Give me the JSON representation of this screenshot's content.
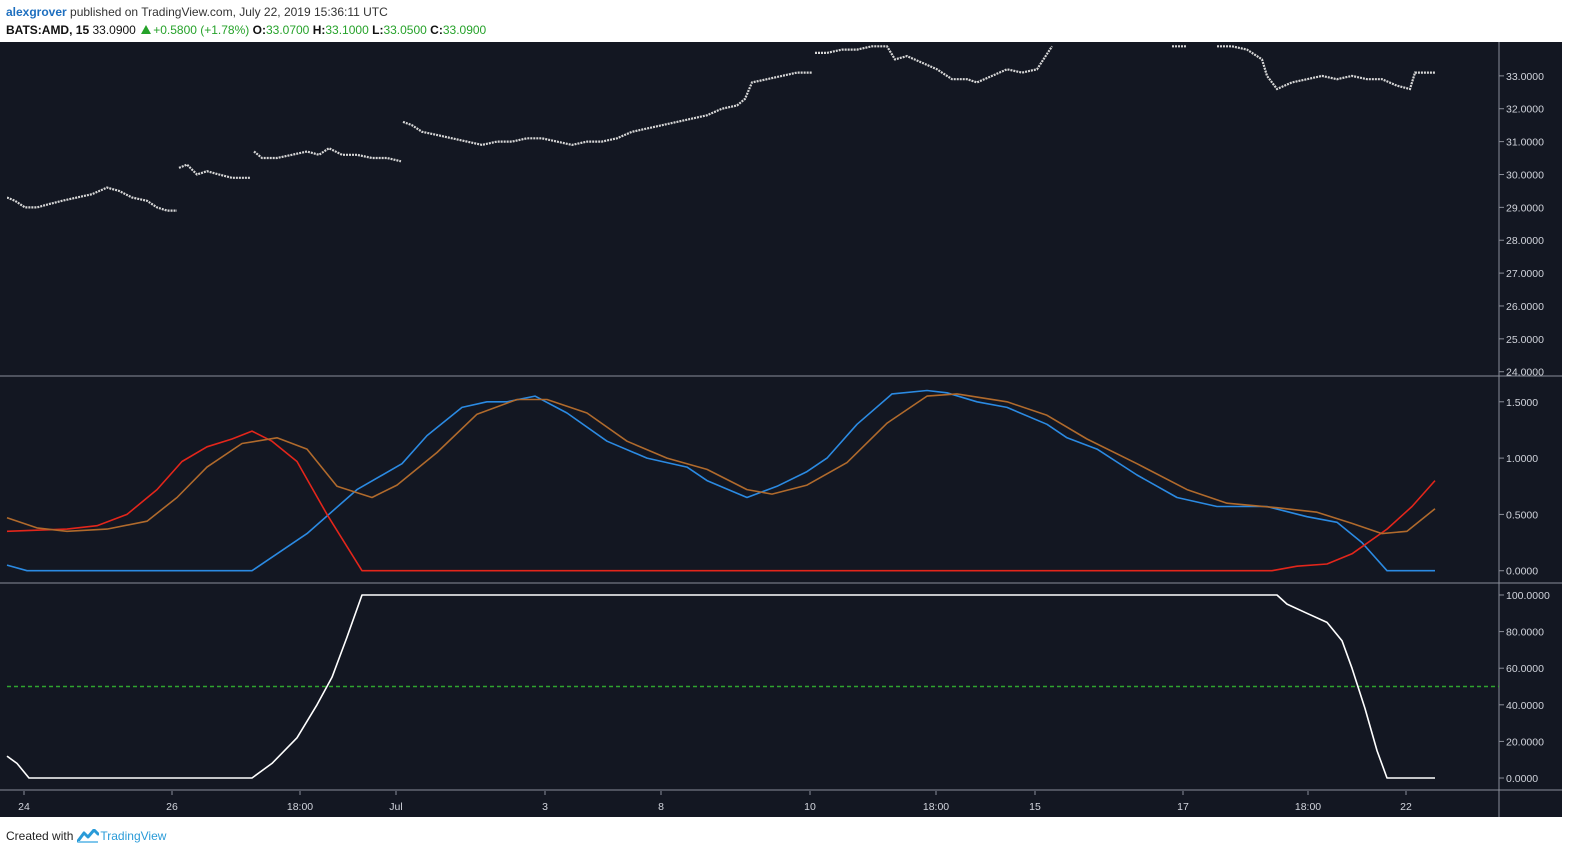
{
  "header": {
    "author": "alexgrover",
    "published_text": " published on TradingView.com, July 22, 2019 15:36:11 UTC",
    "symbol": "BATS:AMD, 15",
    "last": "33.0900",
    "change": "+0.5800 (+1.78%)",
    "open_label": "O:",
    "open_value": "33.0700",
    "high_label": "H:",
    "high_value": "33.1000",
    "low_label": "L:",
    "low_value": "33.0500",
    "close_label": "C:",
    "close_value": "33.0900"
  },
  "footer": {
    "created_with": "Created with",
    "brand": "TradingView"
  },
  "colors": {
    "background": "#131722",
    "price": "#d6d6d6",
    "blue": "#2b8ae2",
    "red": "#e3261b",
    "orange": "#b06a2c",
    "white_line": "#ffffff",
    "threshold": "#2fa52f",
    "axis_text": "#d1d4dc"
  },
  "chart_data": [
    {
      "type": "line",
      "pane": "price",
      "ylim": [
        23.9,
        34.0
      ],
      "y_ticks": [
        "33.0000",
        "32.0000",
        "31.0000",
        "30.0000",
        "29.0000",
        "28.0000",
        "27.0000",
        "26.0000",
        "25.0000",
        "24.0000"
      ],
      "x_tick_labels": [
        "24",
        "26",
        "18:00",
        "Jul",
        "3",
        "8",
        "10",
        "18:00",
        "15",
        "17",
        "18:00",
        "22"
      ],
      "segments": [
        [
          [
            0,
            29.3
          ],
          [
            8,
            29.2
          ],
          [
            18,
            29.0
          ],
          [
            30,
            29.0
          ],
          [
            42,
            29.1
          ],
          [
            55,
            29.2
          ],
          [
            70,
            29.3
          ],
          [
            85,
            29.4
          ],
          [
            100,
            29.6
          ],
          [
            112,
            29.5
          ],
          [
            125,
            29.3
          ],
          [
            140,
            29.2
          ],
          [
            150,
            29.0
          ],
          [
            160,
            28.9
          ],
          [
            170,
            28.9
          ]
        ],
        [
          [
            172,
            30.2
          ],
          [
            180,
            30.3
          ],
          [
            190,
            30.0
          ],
          [
            200,
            30.1
          ],
          [
            212,
            30.0
          ],
          [
            225,
            29.9
          ],
          [
            235,
            29.9
          ],
          [
            243,
            29.9
          ]
        ],
        [
          [
            247,
            30.7
          ],
          [
            255,
            30.5
          ],
          [
            270,
            30.5
          ],
          [
            285,
            30.6
          ],
          [
            300,
            30.7
          ],
          [
            312,
            30.6
          ],
          [
            322,
            30.8
          ],
          [
            335,
            30.6
          ],
          [
            350,
            30.6
          ],
          [
            365,
            30.5
          ],
          [
            380,
            30.5
          ],
          [
            394,
            30.4
          ]
        ],
        [
          [
            396,
            31.6
          ],
          [
            405,
            31.5
          ],
          [
            415,
            31.3
          ],
          [
            430,
            31.2
          ],
          [
            445,
            31.1
          ],
          [
            460,
            31.0
          ],
          [
            475,
            30.9
          ],
          [
            490,
            31.0
          ],
          [
            505,
            31.0
          ],
          [
            520,
            31.1
          ],
          [
            535,
            31.1
          ],
          [
            550,
            31.0
          ],
          [
            565,
            30.9
          ],
          [
            580,
            31.0
          ],
          [
            595,
            31.0
          ],
          [
            610,
            31.1
          ],
          [
            625,
            31.3
          ],
          [
            640,
            31.4
          ],
          [
            655,
            31.5
          ],
          [
            670,
            31.6
          ],
          [
            685,
            31.7
          ],
          [
            700,
            31.8
          ],
          [
            715,
            32.0
          ],
          [
            730,
            32.1
          ],
          [
            738,
            32.3
          ],
          [
            745,
            32.8
          ],
          [
            760,
            32.9
          ],
          [
            775,
            33.0
          ],
          [
            790,
            33.1
          ],
          [
            805,
            33.1
          ]
        ],
        [
          [
            808,
            33.7
          ],
          [
            820,
            33.7
          ],
          [
            835,
            33.8
          ],
          [
            850,
            33.8
          ],
          [
            865,
            33.9
          ],
          [
            880,
            33.9
          ],
          [
            888,
            33.5
          ],
          [
            900,
            33.6
          ],
          [
            915,
            33.4
          ],
          [
            930,
            33.2
          ],
          [
            945,
            32.9
          ],
          [
            960,
            32.9
          ],
          [
            970,
            32.8
          ],
          [
            985,
            33.0
          ],
          [
            1000,
            33.2
          ],
          [
            1015,
            33.1
          ],
          [
            1030,
            33.2
          ],
          [
            1045,
            33.9
          ]
        ],
        [
          [
            1165,
            33.9
          ],
          [
            1180,
            33.9
          ]
        ],
        [
          [
            1210,
            33.9
          ],
          [
            1225,
            33.9
          ],
          [
            1240,
            33.8
          ],
          [
            1255,
            33.5
          ],
          [
            1260,
            33.0
          ],
          [
            1270,
            32.6
          ],
          [
            1285,
            32.8
          ],
          [
            1300,
            32.9
          ],
          [
            1315,
            33.0
          ],
          [
            1330,
            32.9
          ],
          [
            1345,
            33.0
          ],
          [
            1360,
            32.9
          ],
          [
            1375,
            32.9
          ],
          [
            1390,
            32.7
          ],
          [
            1403,
            32.6
          ],
          [
            1408,
            33.1
          ],
          [
            1418,
            33.1
          ],
          [
            1428,
            33.1
          ]
        ]
      ]
    },
    {
      "type": "line",
      "pane": "oscillator",
      "ylim": [
        -0.1,
        1.72
      ],
      "y_ticks": [
        "1.5000",
        "1.0000",
        "0.5000",
        "0.0000"
      ],
      "series": [
        {
          "color": "blue",
          "points": [
            [
              0,
              0.05
            ],
            [
              20,
              0.0
            ],
            [
              200,
              0.0
            ],
            [
              245,
              0.0
            ],
            [
              300,
              0.33
            ],
            [
              350,
              0.72
            ],
            [
              395,
              0.95
            ],
            [
              420,
              1.2
            ],
            [
              455,
              1.45
            ],
            [
              480,
              1.5
            ],
            [
              500,
              1.5
            ],
            [
              528,
              1.55
            ],
            [
              560,
              1.4
            ],
            [
              600,
              1.15
            ],
            [
              640,
              1.0
            ],
            [
              680,
              0.92
            ],
            [
              700,
              0.8
            ],
            [
              740,
              0.65
            ],
            [
              770,
              0.75
            ],
            [
              800,
              0.88
            ],
            [
              820,
              1.0
            ],
            [
              850,
              1.3
            ],
            [
              885,
              1.57
            ],
            [
              920,
              1.6
            ],
            [
              940,
              1.58
            ],
            [
              970,
              1.5
            ],
            [
              1000,
              1.45
            ],
            [
              1040,
              1.3
            ],
            [
              1060,
              1.18
            ],
            [
              1090,
              1.08
            ],
            [
              1130,
              0.85
            ],
            [
              1170,
              0.65
            ],
            [
              1210,
              0.57
            ],
            [
              1260,
              0.57
            ],
            [
              1300,
              0.48
            ],
            [
              1330,
              0.43
            ],
            [
              1355,
              0.25
            ],
            [
              1380,
              0.0
            ],
            [
              1428,
              0.0
            ]
          ]
        },
        {
          "color": "red",
          "points": [
            [
              0,
              0.35
            ],
            [
              30,
              0.36
            ],
            [
              60,
              0.37
            ],
            [
              90,
              0.4
            ],
            [
              120,
              0.5
            ],
            [
              150,
              0.72
            ],
            [
              175,
              0.97
            ],
            [
              200,
              1.1
            ],
            [
              225,
              1.17
            ],
            [
              245,
              1.24
            ],
            [
              265,
              1.15
            ],
            [
              290,
              0.97
            ],
            [
              320,
              0.5
            ],
            [
              355,
              0.0
            ],
            [
              1265,
              0.0
            ],
            [
              1290,
              0.04
            ],
            [
              1320,
              0.06
            ],
            [
              1345,
              0.15
            ],
            [
              1380,
              0.37
            ],
            [
              1405,
              0.57
            ],
            [
              1428,
              0.8
            ]
          ]
        },
        {
          "color": "orange",
          "points": [
            [
              0,
              0.47
            ],
            [
              30,
              0.38
            ],
            [
              60,
              0.35
            ],
            [
              100,
              0.37
            ],
            [
              140,
              0.44
            ],
            [
              170,
              0.65
            ],
            [
              200,
              0.92
            ],
            [
              235,
              1.13
            ],
            [
              270,
              1.18
            ],
            [
              300,
              1.08
            ],
            [
              330,
              0.75
            ],
            [
              365,
              0.65
            ],
            [
              390,
              0.76
            ],
            [
              430,
              1.05
            ],
            [
              470,
              1.39
            ],
            [
              510,
              1.52
            ],
            [
              540,
              1.52
            ],
            [
              580,
              1.4
            ],
            [
              620,
              1.15
            ],
            [
              660,
              1.0
            ],
            [
              700,
              0.9
            ],
            [
              740,
              0.72
            ],
            [
              765,
              0.68
            ],
            [
              800,
              0.76
            ],
            [
              840,
              0.96
            ],
            [
              880,
              1.31
            ],
            [
              920,
              1.55
            ],
            [
              950,
              1.57
            ],
            [
              1000,
              1.5
            ],
            [
              1040,
              1.38
            ],
            [
              1080,
              1.17
            ],
            [
              1130,
              0.95
            ],
            [
              1180,
              0.72
            ],
            [
              1220,
              0.6
            ],
            [
              1270,
              0.56
            ],
            [
              1310,
              0.52
            ],
            [
              1345,
              0.42
            ],
            [
              1375,
              0.33
            ],
            [
              1400,
              0.35
            ],
            [
              1428,
              0.55
            ]
          ]
        }
      ]
    },
    {
      "type": "line",
      "pane": "percent",
      "ylim": [
        -6,
        106
      ],
      "y_ticks": [
        "100.0000",
        "80.0000",
        "60.0000",
        "40.0000",
        "20.0000",
        "0.0000"
      ],
      "threshold": 50,
      "series": [
        {
          "color": "white_line",
          "points": [
            [
              0,
              12
            ],
            [
              10,
              8
            ],
            [
              22,
              0
            ],
            [
              245,
              0
            ],
            [
              265,
              8
            ],
            [
              290,
              22
            ],
            [
              310,
              40
            ],
            [
              325,
              55
            ],
            [
              340,
              77
            ],
            [
              355,
              100
            ],
            [
              1270,
              100
            ],
            [
              1280,
              95
            ],
            [
              1300,
              90
            ],
            [
              1320,
              85
            ],
            [
              1335,
              75
            ],
            [
              1345,
              60
            ],
            [
              1358,
              38
            ],
            [
              1370,
              15
            ],
            [
              1380,
              0
            ],
            [
              1428,
              0
            ]
          ]
        }
      ]
    }
  ]
}
